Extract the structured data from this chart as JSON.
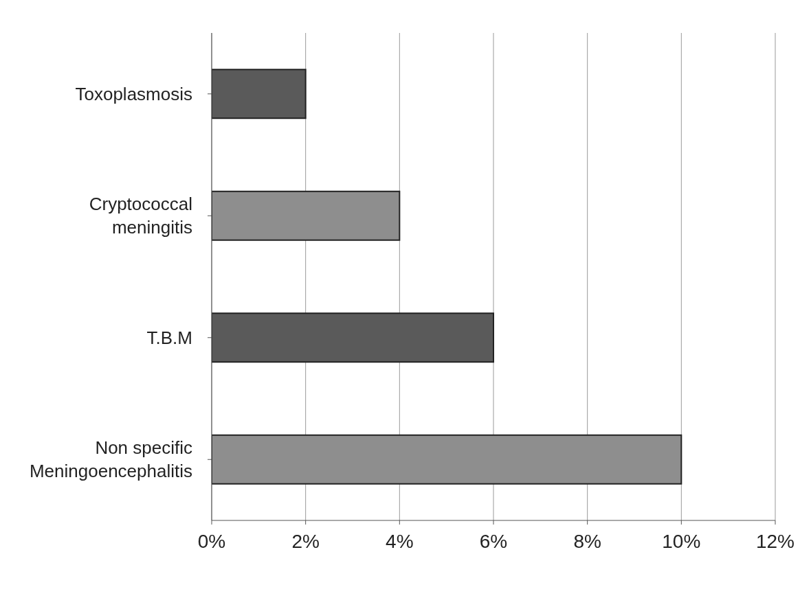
{
  "chart_data": {
    "type": "bar",
    "orientation": "horizontal",
    "categories": [
      "Toxoplasmosis",
      "Cryptococcal meningitis",
      "T.B.M",
      "Non specific Meningoencephalitis"
    ],
    "values": [
      2,
      4,
      6,
      10
    ],
    "colors": [
      "#5a5a5a",
      "#8e8e8e",
      "#5a5a5a",
      "#8e8e8e"
    ],
    "xlim": [
      0,
      12
    ],
    "xticks": [
      {
        "value": 0,
        "label": "0%"
      },
      {
        "value": 2,
        "label": "2%"
      },
      {
        "value": 4,
        "label": "4%"
      },
      {
        "value": 6,
        "label": "6%"
      },
      {
        "value": 8,
        "label": "8%"
      },
      {
        "value": 10,
        "label": "10%"
      },
      {
        "value": 12,
        "label": "12%"
      }
    ],
    "grid": "x"
  }
}
